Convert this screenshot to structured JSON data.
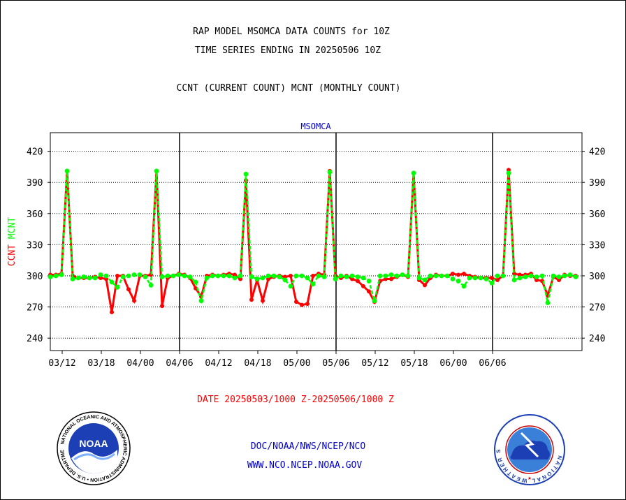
{
  "header": {
    "line1": "RAP MODEL MSOMCA DATA COUNTS for 10Z",
    "line2": "TIME SERIES ENDING IN 20250506 10Z",
    "line3": "CCNT (CURRENT COUNT) MCNT (MONTHLY COUNT)"
  },
  "footer": {
    "date_range": "DATE 20250503/1000 Z-20250506/1000 Z",
    "org_path": "DOC/NOAA/NWS/NCEP/NCO",
    "website": "WWW.NCO.NCEP.NOAA.GOV"
  },
  "logos": {
    "noaa_text": "NOAA",
    "noaa_ring_text": "NATIONAL OCEANIC AND ATMOSPHERIC ADMINISTRATION • U.S. DEPARTMENT OF COMMERCE •",
    "nws_ring_text": "NATIONAL WEATHER SERVICE"
  },
  "colors": {
    "ccnt": "#ff0000",
    "mcnt": "#00ff00",
    "title": "#0000cc",
    "date": "#ff0000",
    "links": "#0000cc"
  },
  "chart_data": {
    "type": "line",
    "title": "MSOMCA",
    "ylabel_parts": [
      {
        "text": "CCNT",
        "color": "#ff0000"
      },
      {
        "text": "MCNT",
        "color": "#00ff00"
      }
    ],
    "ylim": [
      226,
      437
    ],
    "yticks": [
      240,
      270,
      300,
      330,
      360,
      390,
      420
    ],
    "xlim": [
      0,
      94
    ],
    "xticks": [
      {
        "x": 2,
        "label": "03/12"
      },
      {
        "x": 9,
        "label": "03/18"
      },
      {
        "x": 16,
        "label": "04/00"
      },
      {
        "x": 23,
        "label": "04/06"
      },
      {
        "x": 30,
        "label": "04/12"
      },
      {
        "x": 37,
        "label": "04/18"
      },
      {
        "x": 44,
        "label": "05/00"
      },
      {
        "x": 51,
        "label": "05/06"
      },
      {
        "x": 58,
        "label": "05/12"
      },
      {
        "x": 65,
        "label": "05/18"
      },
      {
        "x": 72,
        "label": "06/00"
      },
      {
        "x": 79,
        "label": "06/06"
      }
    ],
    "day_dividers": [
      23,
      51,
      79
    ],
    "grid": true,
    "series": [
      {
        "name": "CCNT",
        "color": "#ff0000",
        "values": [
          301,
          301,
          302,
          401,
          300,
          298,
          298,
          298,
          299,
          298,
          297,
          265,
          300,
          300,
          287,
          276,
          300,
          300,
          301,
          401,
          271,
          298,
          300,
          302,
          301,
          298,
          288,
          280,
          300,
          301,
          300,
          301,
          302,
          301,
          297,
          392,
          277,
          296,
          276,
          297,
          299,
          300,
          299,
          300,
          275,
          272,
          273,
          300,
          302,
          301,
          401,
          300,
          298,
          300,
          297,
          295,
          290,
          285,
          275,
          295,
          297,
          297,
          299,
          301,
          299,
          399,
          296,
          291,
          298,
          301,
          300,
          300,
          302,
          301,
          302,
          300,
          299,
          298,
          298,
          298,
          296,
          300,
          402,
          302,
          301,
          301,
          302,
          296,
          295,
          281,
          299,
          296,
          301,
          300,
          300
        ]
      },
      {
        "name": "MCNT",
        "color": "#00ff00",
        "values": [
          299,
          300,
          301,
          401,
          297,
          298,
          299,
          298,
          298,
          301,
          300,
          294,
          289,
          299,
          300,
          301,
          301,
          299,
          291,
          401,
          299,
          300,
          300,
          301,
          300,
          299,
          294,
          276,
          298,
          300,
          300,
          300,
          300,
          298,
          300,
          398,
          299,
          297,
          298,
          300,
          300,
          299,
          296,
          290,
          300,
          300,
          298,
          292,
          300,
          299,
          400,
          297,
          300,
          299,
          300,
          299,
          298,
          295,
          276,
          300,
          300,
          301,
          300,
          301,
          300,
          399,
          298,
          296,
          300,
          300,
          300,
          300,
          297,
          295,
          290,
          298,
          298,
          298,
          297,
          293,
          300,
          300,
          399,
          296,
          298,
          299,
          300,
          299,
          300,
          274,
          300,
          299,
          300,
          301,
          299
        ]
      }
    ]
  }
}
